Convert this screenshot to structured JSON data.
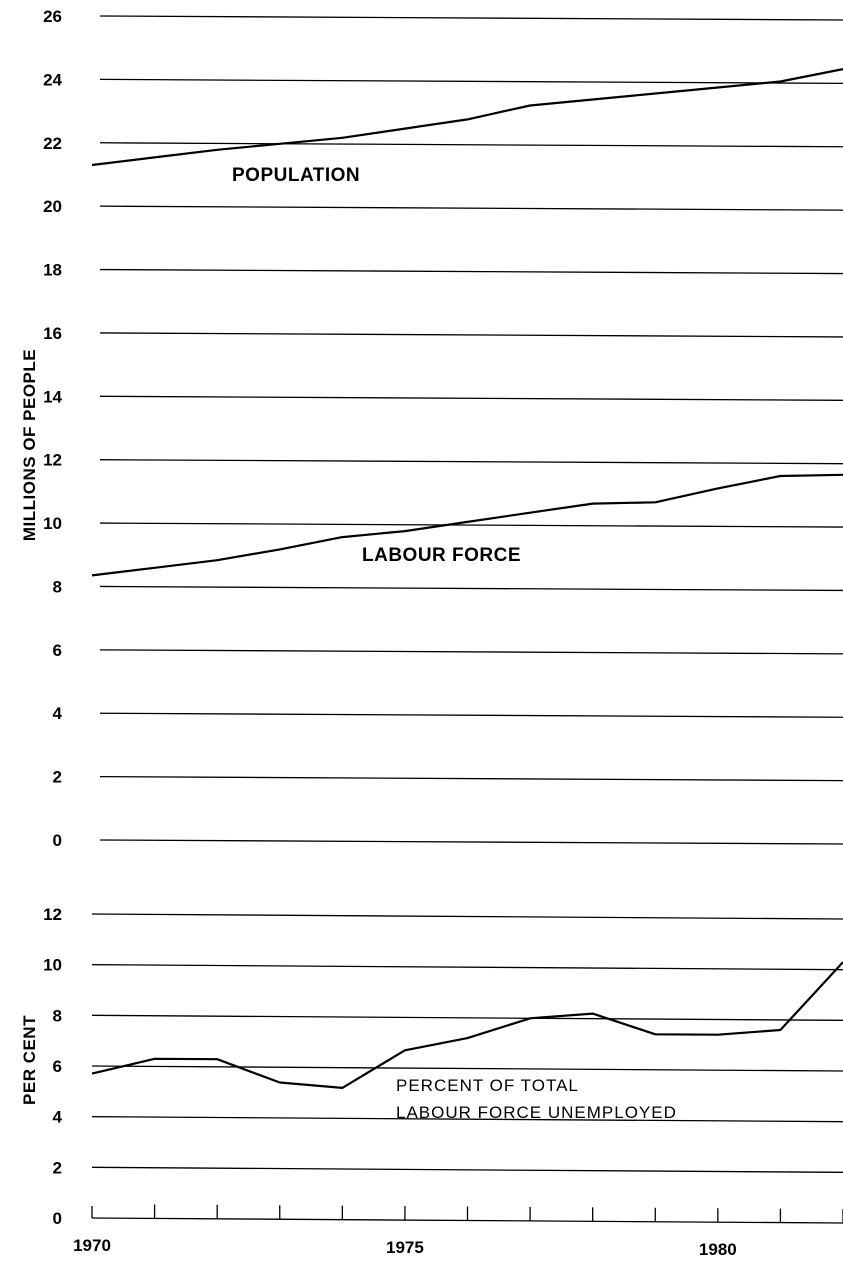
{
  "chart_data": [
    {
      "type": "line",
      "ylabel": "MILLIONS OF PEOPLE",
      "ylim": [
        0,
        26
      ],
      "yticks": [
        "0",
        "2",
        "4",
        "6",
        "8",
        "10",
        "12",
        "14",
        "16",
        "18",
        "20",
        "22",
        "24",
        "26"
      ],
      "x": [
        1970,
        1971,
        1972,
        1973,
        1974,
        1975,
        1976,
        1977,
        1978,
        1979,
        1980,
        1981,
        1982
      ],
      "grid": true,
      "series": [
        {
          "name": "POPULATION",
          "values": [
            21.3,
            21.55,
            21.8,
            22.0,
            22.2,
            22.5,
            22.8,
            23.25,
            23.45,
            23.65,
            23.85,
            24.05,
            24.45
          ]
        },
        {
          "name": "LABOUR FORCE",
          "values": [
            8.35,
            8.6,
            8.85,
            9.2,
            9.6,
            9.8,
            10.1,
            10.4,
            10.7,
            10.75,
            11.2,
            11.6,
            11.65
          ]
        }
      ]
    },
    {
      "type": "line",
      "ylabel": "PER CENT",
      "ylim": [
        0,
        12
      ],
      "yticks": [
        "0",
        "2",
        "4",
        "6",
        "8",
        "10",
        "12"
      ],
      "x": [
        1970,
        1971,
        1972,
        1973,
        1974,
        1975,
        1976,
        1977,
        1978,
        1979,
        1980,
        1981,
        1982
      ],
      "xtick_labels": [
        "1970",
        "1975",
        "1980"
      ],
      "grid": true,
      "series": [
        {
          "name": "PERCENT OF TOTAL LABOUR FORCE UNEMPLOYED",
          "label_lines": [
            "PERCENT OF TOTAL",
            "LABOUR FORCE UNEMPLOYED"
          ],
          "values": [
            5.7,
            6.3,
            6.3,
            5.4,
            5.2,
            6.7,
            7.2,
            8.0,
            8.2,
            7.4,
            7.4,
            7.6,
            10.3
          ]
        }
      ]
    }
  ]
}
